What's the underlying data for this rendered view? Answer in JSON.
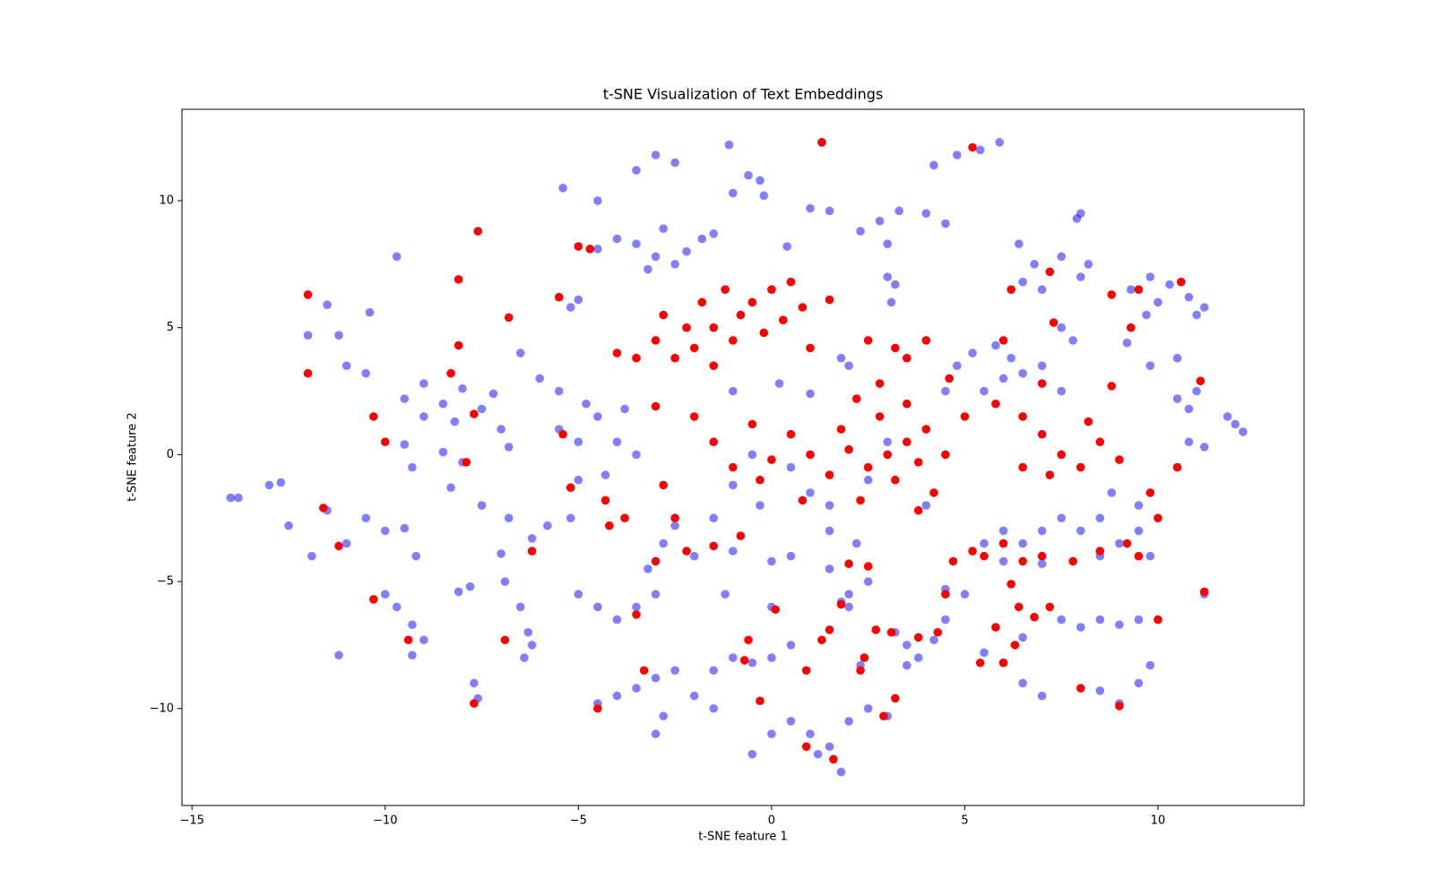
{
  "chart_data": {
    "type": "scatter",
    "title": "t-SNE Visualization of Text Embeddings",
    "xlabel": "t-SNE feature 1",
    "ylabel": "t-SNE feature 2",
    "xlim": [
      -15.26,
      13.78
    ],
    "ylim": [
      -13.82,
      13.6
    ],
    "xticks": [
      {
        "value": -15,
        "label": "−15"
      },
      {
        "value": -10,
        "label": "−10"
      },
      {
        "value": -5,
        "label": "−5"
      },
      0,
      5,
      10
    ],
    "yticks": [
      {
        "value": -10,
        "label": "−10"
      },
      {
        "value": -5,
        "label": "−5"
      },
      0,
      5,
      10
    ],
    "grid": false,
    "series": [
      {
        "color": "blue",
        "alpha": 0.5,
        "x": [
          -14,
          -13.8,
          -13,
          -12.7,
          -12.5,
          -12,
          -11.5,
          -11.2,
          -10.4,
          -11,
          -10.5,
          -11.9,
          -11.5,
          -11,
          -10.5,
          -10,
          -9.5,
          -9.7,
          -9.5,
          -9,
          -8.5,
          -8,
          -7.5,
          -7,
          -6.8,
          -9,
          -8.2,
          -7.2,
          -9.5,
          -8.5,
          -8,
          -9.3,
          -8.3,
          -7.5,
          -6.8,
          -6.2,
          -7,
          -5.8,
          -5.2,
          -10,
          -9.7,
          -9.3,
          -9,
          -9.3,
          -11.2,
          -9.2,
          -7.7,
          -7.6,
          -8.1,
          -7.8,
          -6.9,
          -6.5,
          -6.3,
          -6.4,
          -6.2,
          -5.5,
          -5,
          -4.5,
          -4,
          -3.8,
          -4.3,
          -5,
          -3.5,
          -4.8,
          -6.5,
          -6,
          -5.5,
          -5.2,
          -5,
          -5.4,
          -4.5,
          -3.5,
          -3,
          -2.5,
          -1.1,
          -1,
          -0.3,
          -0.6,
          -0.2,
          1,
          0.4,
          -4,
          -3.5,
          -3,
          -2.8,
          -2.2,
          -1.8,
          -1.5,
          -2.5,
          -3.2,
          -4.5,
          1.3,
          1.5,
          2.3,
          2.8,
          3.3,
          4,
          4.5,
          3,
          3,
          3.1,
          3.2,
          4.2,
          4.8,
          5.4,
          5.9,
          8,
          7.9,
          6.4,
          6.8,
          7,
          7.5,
          8,
          8.2,
          6.5,
          9.3,
          9.8,
          10.3,
          10.8,
          11.2,
          9.7,
          10,
          11,
          9.2,
          9.8,
          10.5,
          10.5,
          11,
          10.8,
          10.8,
          11.2,
          12,
          12.2,
          11.8,
          4.8,
          5.2,
          5.8,
          6.2,
          6.5,
          7,
          5.5,
          6,
          4.5,
          7.5,
          7.8,
          7.5,
          -1,
          0.2,
          1,
          1.8,
          2,
          -0.5,
          0.5,
          1,
          -1,
          -1.5,
          -0.3,
          1.5,
          2.5,
          3,
          4,
          -2.5,
          -2.8,
          -2,
          -1,
          0,
          0.5,
          1.5,
          2.2,
          -1.2,
          0,
          2,
          2.5,
          1.5,
          5.5,
          6,
          6.5,
          7,
          7.5,
          8,
          8.5,
          9,
          9.5,
          9.8,
          8.5,
          7,
          6,
          8.8,
          9.5,
          4.5,
          5,
          3.2,
          3.5,
          3.8,
          4.2,
          4.5,
          3.5,
          5.5,
          6,
          6.5,
          7,
          6.5,
          7.5,
          8,
          8.5,
          9,
          9.5,
          8.5,
          9,
          9.5,
          9.8,
          11.2,
          -4.5,
          -4,
          -3.5,
          -3,
          -2.5,
          -3,
          -2.8,
          -2,
          -1.5,
          -1.5,
          -1,
          -0.5,
          0,
          0.5,
          -0.5,
          0,
          0.5,
          1,
          1.5,
          2,
          1.8,
          1.2,
          2.5,
          3,
          -4.5,
          -4,
          -3.5,
          -3,
          -3.2,
          -5,
          1.8,
          2,
          2.3
        ],
        "y": [
          -1.7,
          -1.7,
          -1.2,
          -1.1,
          -2.8,
          4.7,
          5.9,
          4.7,
          5.6,
          3.5,
          3.2,
          -4,
          -2.2,
          -3.5,
          -2.5,
          -3,
          -2.9,
          7.8,
          2.2,
          2.8,
          2,
          2.6,
          1.8,
          1,
          0.3,
          1.5,
          1.3,
          2.4,
          0.4,
          0.1,
          -0.3,
          -0.5,
          -1.3,
          -2,
          -2.5,
          -3.3,
          -3.9,
          -2.8,
          -2.5,
          -5.5,
          -6,
          -6.7,
          -7.3,
          -7.9,
          -7.9,
          -4,
          -9,
          -9.6,
          -5.4,
          -5.2,
          -5,
          -6,
          -7,
          -8,
          -7.5,
          1,
          0.5,
          1.5,
          0.5,
          1.8,
          -0.8,
          -1,
          0,
          2,
          4,
          3,
          2.5,
          5.8,
          6.1,
          10.5,
          10,
          11.2,
          11.8,
          11.5,
          12.2,
          10.3,
          10.8,
          11,
          10.2,
          9.7,
          8.2,
          8.5,
          8.3,
          7.8,
          8.9,
          8,
          8.5,
          8.7,
          7.5,
          7.3,
          8.1,
          12.3,
          9.6,
          8.8,
          9.2,
          9.6,
          9.5,
          9.1,
          8.3,
          7,
          6,
          6.7,
          11.4,
          11.8,
          12,
          12.3,
          9.5,
          9.3,
          8.3,
          7.5,
          6.5,
          7.8,
          7,
          7.5,
          6.8,
          6.5,
          7,
          6.7,
          6.2,
          5.8,
          5.5,
          6,
          5.5,
          4.4,
          3.5,
          3.8,
          2.2,
          2.5,
          1.8,
          0.5,
          0.3,
          1.2,
          0.9,
          1.5,
          3.5,
          4,
          4.3,
          3.8,
          3.2,
          3.5,
          2.5,
          3,
          2.5,
          2.5,
          4.5,
          5,
          2.5,
          2.8,
          2.4,
          3.8,
          3.5,
          0,
          -0.5,
          -1.5,
          -1.2,
          -2.5,
          -2,
          -2,
          -1,
          0.5,
          -2,
          -2.8,
          -3.5,
          -4,
          -3.8,
          -4.2,
          -4,
          -3,
          -3.5,
          -5.5,
          -6,
          -5.5,
          -5,
          -4.5,
          -3.5,
          -3,
          -3.5,
          -3,
          -2.5,
          -3,
          -2.5,
          -3.5,
          -3,
          -4,
          -4,
          -4.3,
          -4.2,
          -1.5,
          -2,
          -5.3,
          -5.5,
          -7,
          -7.5,
          -8,
          -7.3,
          -6.5,
          -8.3,
          -7.8,
          -8.2,
          -9,
          -9.5,
          -7.2,
          -6.5,
          -6.8,
          -6.5,
          -6.7,
          -6.5,
          -9.3,
          -9.8,
          -9,
          -8.3,
          -5.5,
          -9.8,
          -9.5,
          -9.2,
          -8.8,
          -8.5,
          -11,
          -10.3,
          -9.5,
          -8.5,
          -10,
          -8,
          -8.2,
          -8,
          -7.5,
          -11.8,
          -11,
          -10.5,
          -11,
          -11.5,
          -10.5,
          -12.5,
          -11.8,
          -10,
          -10.3,
          -6,
          -6.5,
          -6,
          -5.5,
          -4.5,
          -5.5,
          -5.8,
          -6,
          -8.3
        ]
      },
      {
        "color": "red",
        "alpha": 1,
        "x": [
          -12,
          -12,
          -11.6,
          -11.2,
          -10.3,
          -10,
          -10.3,
          -9.4,
          -8.3,
          -8.1,
          -8.1,
          -7.6,
          -7.7,
          -7.7,
          -7.9,
          -6.8,
          -6.9,
          -6.2,
          -5.5,
          -5.4,
          -5.2,
          -5,
          -4.7,
          -4.3,
          -4.5,
          -4.2,
          -3.8,
          -3.5,
          -3.3,
          -3,
          -3,
          -2.8,
          -2.5,
          -2.2,
          -1.5,
          -0.8,
          -4,
          -3.5,
          -3,
          -2.8,
          -2.2,
          -2,
          -1.8,
          -1.5,
          -1.2,
          -1,
          -0.8,
          -0.5,
          -0.2,
          0,
          0.3,
          0.5,
          0.8,
          1,
          1.5,
          -1.5,
          -2.5,
          -2,
          -1.5,
          -1,
          -0.5,
          0,
          0.5,
          1,
          1.5,
          1.8,
          2,
          2.5,
          2.8,
          3,
          3.2,
          3.5,
          3.8,
          4,
          4.2,
          4.5,
          2.2,
          2.8,
          3.5,
          0.8,
          -0.3,
          2.3,
          3.8,
          4,
          3.5,
          2.5,
          3.2,
          4.6,
          5,
          5.8,
          6.5,
          7,
          7.5,
          8,
          6.5,
          7.2,
          8.5,
          9,
          8.2,
          7,
          6,
          7.2,
          6.2,
          7.3,
          8.8,
          9.5,
          10.6,
          11.1,
          10.5,
          9.3,
          8.8,
          5.2,
          5.5,
          6,
          6.5,
          7,
          7.8,
          8.5,
          9.2,
          9.5,
          10,
          9.8,
          6.2,
          6.4,
          6.8,
          7.2,
          5.8,
          6,
          5.4,
          6.3,
          8,
          9,
          10,
          3.1,
          3.8,
          4.3,
          2.3,
          2.4,
          2.7,
          3.2,
          2.9,
          1.6,
          0.9,
          -0.3,
          -0.7,
          0.1,
          1.5,
          1.3,
          0.9,
          -0.6,
          2,
          2.5,
          1.8,
          4.5,
          1.3,
          5.2,
          11.2,
          4.7
        ],
        "y": [
          6.3,
          3.2,
          -2.1,
          -3.6,
          1.5,
          0.5,
          -5.7,
          -7.3,
          3.2,
          6.9,
          4.3,
          8.8,
          1.6,
          -9.8,
          -0.3,
          5.4,
          -7.3,
          -3.8,
          6.2,
          0.8,
          -1.3,
          8.2,
          8.1,
          -1.8,
          -10,
          -2.8,
          -2.5,
          -6.3,
          -8.5,
          -4.2,
          1.9,
          -1.2,
          -2.5,
          -3.8,
          -3.6,
          -3.2,
          4,
          3.8,
          4.5,
          5.5,
          5,
          4.2,
          6,
          5,
          6.5,
          4.5,
          5.5,
          6,
          4.8,
          6.5,
          5.3,
          6.8,
          5.8,
          4.2,
          6.1,
          3.5,
          3.8,
          1.5,
          0.5,
          -0.5,
          1.2,
          -0.2,
          0.8,
          0,
          -0.8,
          1,
          0.2,
          -0.5,
          1.5,
          0,
          -1,
          0.5,
          -0.3,
          1,
          -1.5,
          0,
          2.2,
          2.8,
          2,
          -1.8,
          -1,
          -1.8,
          -2.2,
          4.5,
          3.8,
          4.5,
          4.2,
          3,
          1.5,
          2,
          1.5,
          0.8,
          0,
          -0.5,
          -0.5,
          -0.8,
          0.5,
          -0.2,
          1.3,
          2.8,
          4.5,
          7.2,
          6.5,
          5.2,
          6.3,
          6.5,
          6.8,
          2.9,
          -0.5,
          5,
          2.7,
          -3.8,
          -4,
          -3.5,
          -4.2,
          -4,
          -4.2,
          -3.8,
          -3.5,
          -4,
          -2.5,
          -1.5,
          -5.1,
          -6,
          -6.4,
          -6,
          -6.8,
          -8.2,
          -8.2,
          -7.5,
          -9.2,
          -9.9,
          -6.5,
          -7,
          -7.2,
          -7,
          -8.5,
          -8,
          -6.9,
          -9.6,
          -10.3,
          -12,
          -11.5,
          -9.7,
          -8.1,
          -6.1,
          -6.9,
          -7.3,
          -8.5,
          -7.3,
          -4.3,
          -4.4,
          -5.9,
          -5.5,
          12.3,
          12.1,
          -5.4,
          -4.2
        ]
      }
    ]
  }
}
